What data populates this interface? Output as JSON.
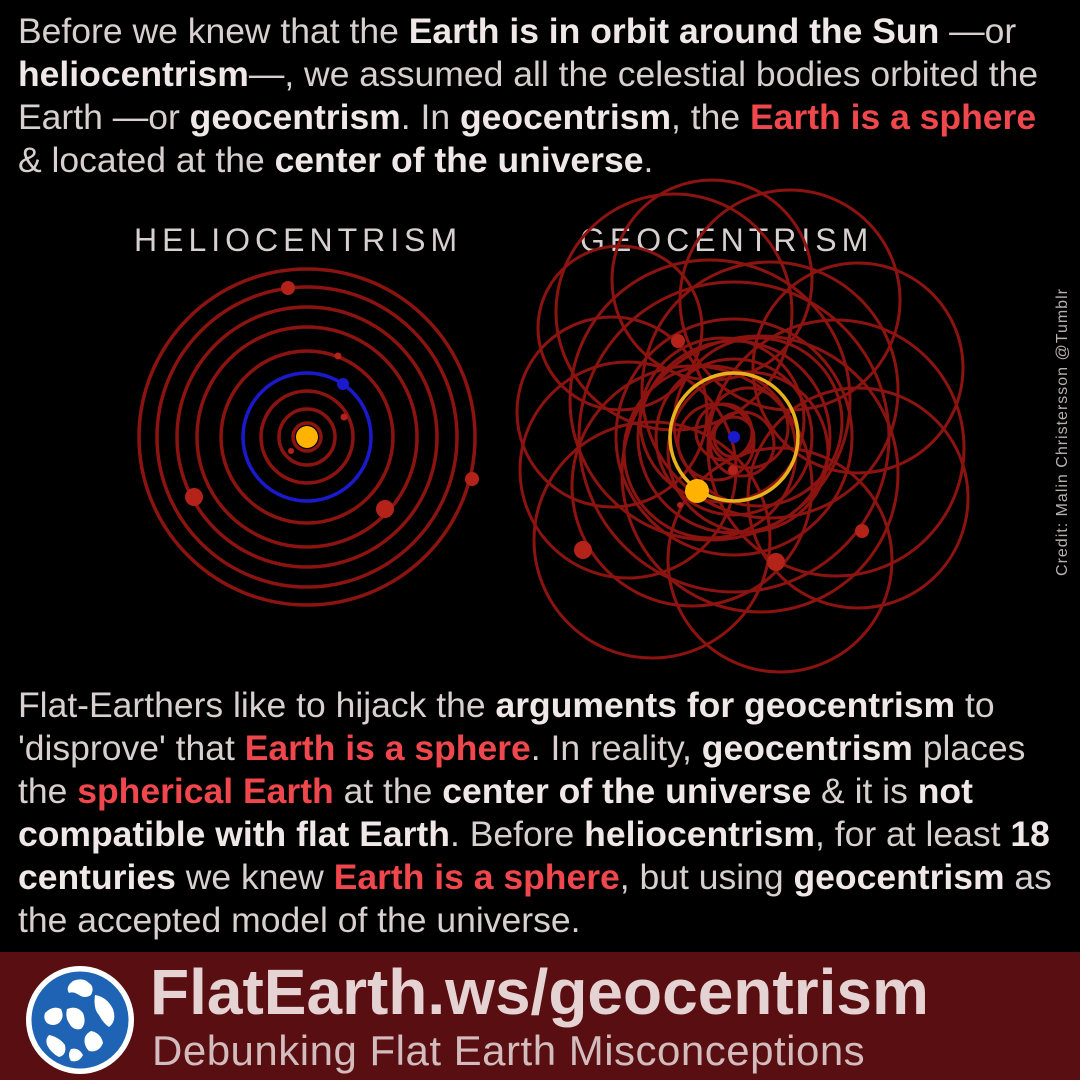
{
  "intro": {
    "s1": "Before we knew that the ",
    "s2": "Earth is in orbit around the Sun",
    "s3": " —or ",
    "s4": "heliocentrism",
    "s5": "—, we assumed all the celestial bodies orbited the Earth —or ",
    "s6": "geocentrism",
    "s7": ". In ",
    "s8": "geocentrism",
    "s9": ", the ",
    "s10": "Earth is a sphere",
    "s11": " & located at the ",
    "s12": "center of the universe",
    "s13": "."
  },
  "diagram": {
    "helio_title": "HELIOCENTRISM",
    "geo_title": "GEOCENTRISM",
    "credit": "Credit: Malin Christersson @Tumblr",
    "colors": {
      "orbit": "#8c1410",
      "planet": "#b3231a",
      "earth": "#1a1acc",
      "sun": "#ffb300",
      "sun_orbit": "#e8b21c"
    }
  },
  "body2": {
    "s1": "Flat-Earthers like to hijack the ",
    "s2": "arguments for geocentrism",
    "s3": " to 'disprove' that ",
    "s4": "Earth is a sphere",
    "s5": ". In reality, ",
    "s6": "geocentrism",
    "s7": " places the ",
    "s8": "spherical Earth",
    "s9": " at the ",
    "s10": "center of the universe",
    "s11": " & it is ",
    "s12": "not compatible with flat Earth",
    "s13": ". Before ",
    "s14": "heliocentrism",
    "s15": ", for at least ",
    "s16": "18 centuries",
    "s17": " we knew ",
    "s18": "Earth is a sphere",
    "s19": ", but using ",
    "s20": "geocentrism",
    "s21": " as the accepted model of the universe."
  },
  "footer": {
    "url": "FlatEarth.ws/geocentrism",
    "tagline": "Debunking Flat Earth Misconceptions",
    "logo_icon": "globe-icon",
    "colors": {
      "bar": "#590f11",
      "text": "#e5d2d3"
    }
  }
}
